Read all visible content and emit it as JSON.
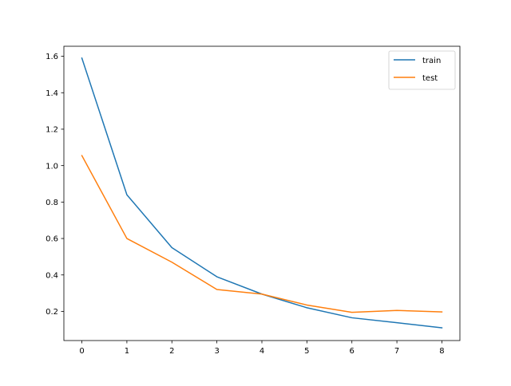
{
  "chart_data": {
    "type": "line",
    "title": "",
    "xlabel": "",
    "ylabel": "",
    "x": [
      0,
      1,
      2,
      3,
      4,
      5,
      6,
      7,
      8
    ],
    "xlim": [
      -0.4,
      8.4
    ],
    "ylim": [
      0.04,
      1.655
    ],
    "xticks": [
      0,
      1,
      2,
      3,
      4,
      5,
      6,
      7,
      8
    ],
    "yticks": [
      0.2,
      0.4,
      0.6,
      0.8,
      1.0,
      1.2,
      1.4,
      1.6
    ],
    "ytick_labels": [
      "0.2",
      "0.4",
      "0.6",
      "0.8",
      "1.0",
      "1.2",
      "1.4",
      "1.6"
    ],
    "grid": false,
    "legend_position": "top-right",
    "series": [
      {
        "name": "train",
        "color": "#1f77b4",
        "values": [
          1.59,
          0.84,
          0.55,
          0.39,
          0.295,
          0.22,
          0.165,
          0.138,
          0.11
        ]
      },
      {
        "name": "test",
        "color": "#ff7f0e",
        "values": [
          1.055,
          0.6,
          0.47,
          0.32,
          0.295,
          0.235,
          0.195,
          0.205,
          0.197
        ]
      }
    ]
  }
}
